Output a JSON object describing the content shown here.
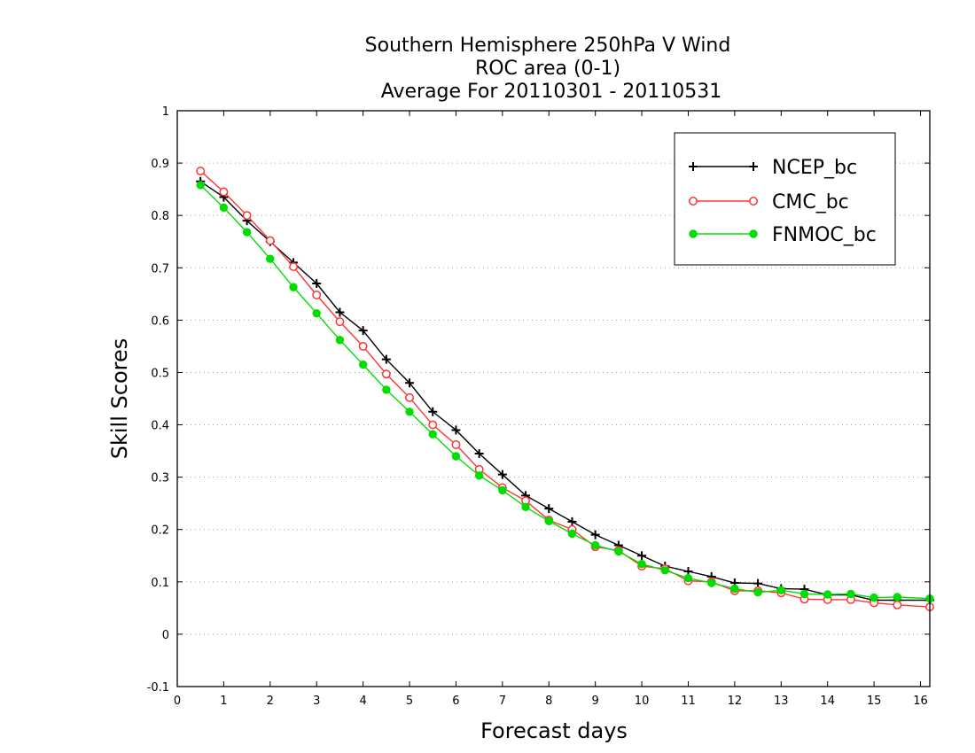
{
  "chart_data": {
    "type": "line",
    "title_lines": [
      "Southern Hemisphere 250hPa V Wind",
      "ROC area (0-1)",
      "Average For 20110301 - 20110531"
    ],
    "xlabel": "Forecast days",
    "ylabel": "Skill Scores",
    "xlim": [
      0,
      16.2
    ],
    "ylim": [
      -0.1,
      1
    ],
    "xticks": [
      0,
      1,
      2,
      3,
      4,
      5,
      6,
      7,
      8,
      9,
      10,
      11,
      12,
      13,
      14,
      15,
      16
    ],
    "xtick_labels": [
      "0",
      "1",
      "2",
      "3",
      "4",
      "5",
      "6",
      "7",
      "8",
      "9",
      "10",
      "11",
      "12",
      "13",
      "14",
      "15",
      "16"
    ],
    "yticks": [
      -0.1,
      0,
      0.1,
      0.2,
      0.3,
      0.4,
      0.5,
      0.6,
      0.7,
      0.8,
      0.9,
      1
    ],
    "ytick_labels": [
      "-0.1",
      "0",
      "0.1",
      "0.2",
      "0.3",
      "0.4",
      "0.5",
      "0.6",
      "0.7",
      "0.8",
      "0.9",
      "1"
    ],
    "grid": "horizontal dotted",
    "legend_position": "top-right",
    "x": [
      0.5,
      1,
      1.5,
      2,
      2.5,
      3,
      3.5,
      4,
      4.5,
      5,
      5.5,
      6,
      6.5,
      7,
      7.5,
      8,
      8.5,
      9,
      9.5,
      10,
      10.5,
      11,
      11.5,
      12,
      12.5,
      13,
      13.5,
      14,
      14.5,
      15,
      15.5,
      16.2
    ],
    "series": [
      {
        "name": "NCEP_bc",
        "color": "#000000",
        "marker": "plus",
        "values": [
          0.865,
          0.835,
          0.79,
          0.75,
          0.71,
          0.67,
          0.615,
          0.58,
          0.525,
          0.48,
          0.425,
          0.39,
          0.345,
          0.305,
          0.265,
          0.24,
          0.215,
          0.19,
          0.17,
          0.15,
          0.13,
          0.12,
          0.11,
          0.098,
          0.097,
          0.087,
          0.086,
          0.075,
          0.075,
          0.065,
          0.065,
          0.065
        ]
      },
      {
        "name": "CMC_bc",
        "color": "#ff3333",
        "marker": "open-circle",
        "values": [
          0.885,
          0.845,
          0.8,
          0.752,
          0.702,
          0.648,
          0.597,
          0.55,
          0.497,
          0.452,
          0.4,
          0.362,
          0.315,
          0.28,
          0.255,
          0.218,
          0.2,
          0.167,
          0.16,
          0.13,
          0.125,
          0.102,
          0.1,
          0.083,
          0.083,
          0.079,
          0.067,
          0.066,
          0.066,
          0.06,
          0.056,
          0.052
        ]
      },
      {
        "name": "FNMOC_bc",
        "color": "#00dd00",
        "marker": "filled-circle",
        "values": [
          0.858,
          0.815,
          0.768,
          0.717,
          0.663,
          0.613,
          0.562,
          0.515,
          0.467,
          0.425,
          0.382,
          0.34,
          0.303,
          0.275,
          0.243,
          0.216,
          0.192,
          0.17,
          0.158,
          0.134,
          0.122,
          0.107,
          0.098,
          0.087,
          0.08,
          0.084,
          0.077,
          0.076,
          0.077,
          0.07,
          0.071,
          0.068
        ]
      }
    ]
  }
}
